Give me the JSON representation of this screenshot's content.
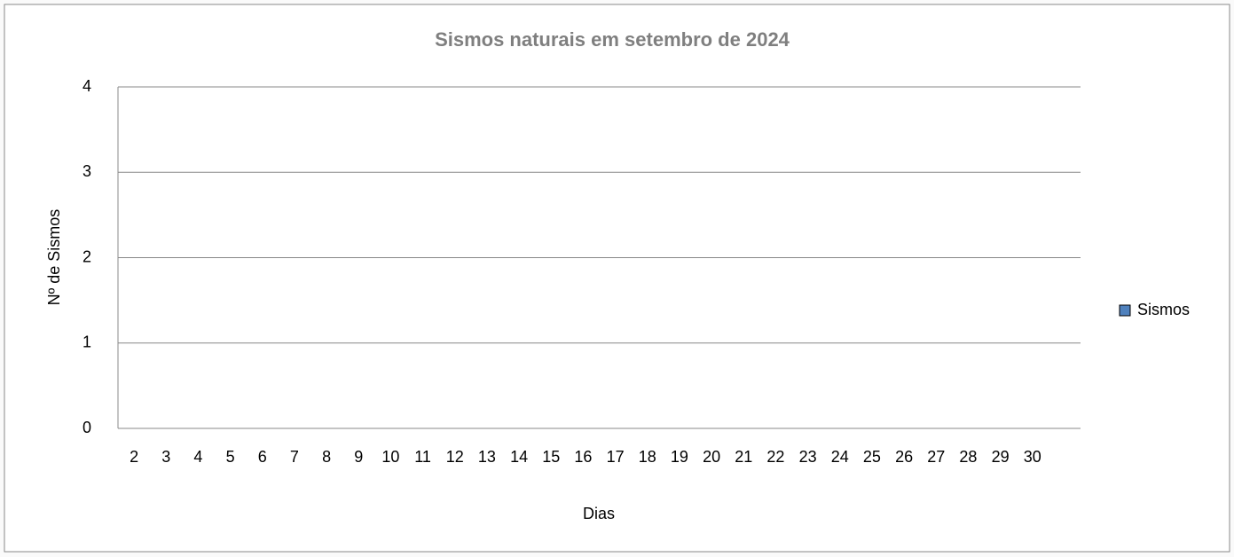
{
  "chart_data": {
    "type": "bar",
    "title": "Sismos  naturais em setembro de 2024",
    "x_label": "Dias",
    "y_label": "Nº de Sismos",
    "categories": [
      "2",
      "3",
      "4",
      "5",
      "6",
      "7",
      "8",
      "9",
      "10",
      "11",
      "12",
      "13",
      "14",
      "15",
      "16",
      "17",
      "18",
      "19",
      "20",
      "21",
      "22",
      "23",
      "24",
      "25",
      "26",
      "27",
      "28",
      "29",
      "30",
      null
    ],
    "series": [
      {
        "name": "Sismos",
        "color": "#4f81bd",
        "values": [
          0,
          0,
          0,
          0,
          0,
          0,
          0,
          0,
          0,
          0,
          0,
          0,
          0,
          0,
          0,
          0,
          0,
          0,
          0,
          0,
          0,
          0,
          0,
          0,
          0,
          0,
          0,
          0,
          0,
          0
        ]
      }
    ],
    "ylim": [
      0,
      4
    ],
    "yticks": [
      0,
      1,
      2,
      3,
      4
    ],
    "grid": true,
    "legend": "right"
  }
}
